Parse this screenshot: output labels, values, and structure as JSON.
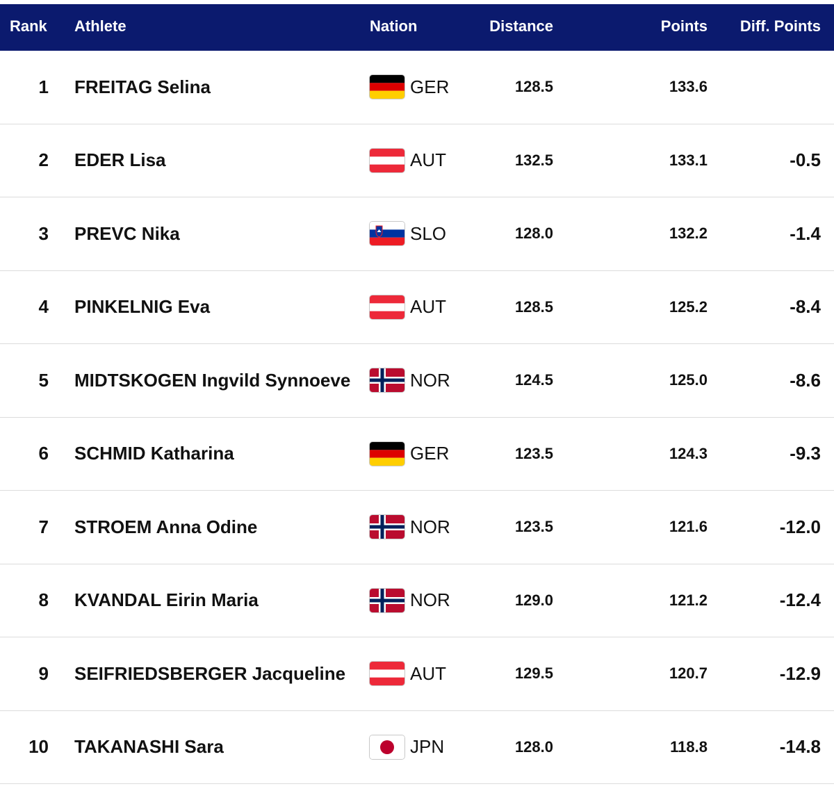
{
  "header": {
    "rank": "Rank",
    "athlete": "Athlete",
    "nation": "Nation",
    "distance": "Distance",
    "points": "Points",
    "diff": "Diff. Points"
  },
  "rows": [
    {
      "rank": "1",
      "athlete": "FREITAG Selina",
      "nation": "GER",
      "flag": "germany-flag-icon",
      "distance": "128.5",
      "points": "133.6",
      "diff": ""
    },
    {
      "rank": "2",
      "athlete": "EDER Lisa",
      "nation": "AUT",
      "flag": "austria-flag-icon",
      "distance": "132.5",
      "points": "133.1",
      "diff": "-0.5"
    },
    {
      "rank": "3",
      "athlete": "PREVC Nika",
      "nation": "SLO",
      "flag": "slovenia-flag-icon",
      "distance": "128.0",
      "points": "132.2",
      "diff": "-1.4"
    },
    {
      "rank": "4",
      "athlete": "PINKELNIG Eva",
      "nation": "AUT",
      "flag": "austria-flag-icon",
      "distance": "128.5",
      "points": "125.2",
      "diff": "-8.4"
    },
    {
      "rank": "5",
      "athlete": "MIDTSKOGEN Ingvild Synnoeve",
      "nation": "NOR",
      "flag": "norway-flag-icon",
      "distance": "124.5",
      "points": "125.0",
      "diff": "-8.6"
    },
    {
      "rank": "6",
      "athlete": "SCHMID Katharina",
      "nation": "GER",
      "flag": "germany-flag-icon",
      "distance": "123.5",
      "points": "124.3",
      "diff": "-9.3"
    },
    {
      "rank": "7",
      "athlete": "STROEM Anna Odine",
      "nation": "NOR",
      "flag": "norway-flag-icon",
      "distance": "123.5",
      "points": "121.6",
      "diff": "-12.0"
    },
    {
      "rank": "8",
      "athlete": "KVANDAL Eirin Maria",
      "nation": "NOR",
      "flag": "norway-flag-icon",
      "distance": "129.0",
      "points": "121.2",
      "diff": "-12.4"
    },
    {
      "rank": "9",
      "athlete": "SEIFRIEDSBERGER Jacqueline",
      "nation": "AUT",
      "flag": "austria-flag-icon",
      "distance": "129.5",
      "points": "120.7",
      "diff": "-12.9"
    },
    {
      "rank": "10",
      "athlete": "TAKANASHI Sara",
      "nation": "JPN",
      "flag": "japan-flag-icon",
      "distance": "128.0",
      "points": "118.8",
      "diff": "-14.8"
    }
  ],
  "colors": {
    "header_bg": "#0b1a6e",
    "header_text": "#ffffff",
    "row_divider": "#dcdcdc"
  }
}
